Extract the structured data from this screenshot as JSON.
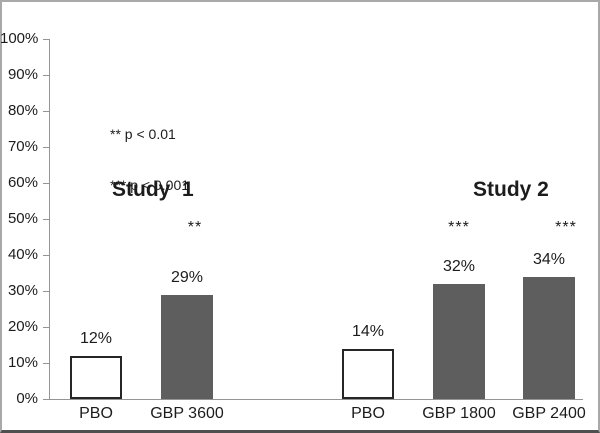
{
  "legend": {
    "line1": "** p < 0.01",
    "line2": "*** p < 0.001"
  },
  "colors": {
    "bar_fill": "#5e5e5e",
    "placebo_fill": "#ffffff",
    "placebo_border": "#262626",
    "axis": "#949494",
    "text": "#1c1c1c",
    "frame_border": "#a9a9a9",
    "frame_bottom_border": "#4f4f4f"
  },
  "chart_data": {
    "type": "bar",
    "title": "",
    "xlabel": "",
    "ylabel": "",
    "ylim": [
      0,
      100
    ],
    "grid": false,
    "legend_position": "none",
    "yticks": [
      {
        "percent": 0,
        "label": "0%"
      },
      {
        "percent": 10,
        "label": "10%"
      },
      {
        "percent": 20,
        "label": "20%"
      },
      {
        "percent": 30,
        "label": "30%"
      },
      {
        "percent": 40,
        "label": "40%"
      },
      {
        "percent": 50,
        "label": "50%"
      },
      {
        "percent": 60,
        "label": "60%"
      },
      {
        "percent": 70,
        "label": "70%"
      },
      {
        "percent": 80,
        "label": "80%"
      },
      {
        "percent": 90,
        "label": "90%"
      },
      {
        "percent": 100,
        "label": "100%"
      }
    ],
    "annotations": [
      "** p < 0.01",
      "*** p < 0.001"
    ],
    "study_labels": [
      {
        "text": "Study  1"
      },
      {
        "text": "Study 2"
      }
    ],
    "bars": [
      {
        "study": "Study 1",
        "category": "PBO",
        "value": 12,
        "value_label": "12%",
        "style": "placebo",
        "significance": ""
      },
      {
        "study": "Study 1",
        "category": "GBP 3600",
        "value": 29,
        "value_label": "29%",
        "style": "treatment",
        "significance": "**"
      },
      {
        "study": "Study 2",
        "category": "PBO",
        "value": 14,
        "value_label": "14%",
        "style": "placebo",
        "significance": ""
      },
      {
        "study": "Study 2",
        "category": "GBP 1800",
        "value": 32,
        "value_label": "32%",
        "style": "treatment",
        "significance": "***"
      },
      {
        "study": "Study 2",
        "category": "GBP 2400",
        "value": 34,
        "value_label": "34%",
        "style": "treatment",
        "significance": "***"
      }
    ]
  }
}
